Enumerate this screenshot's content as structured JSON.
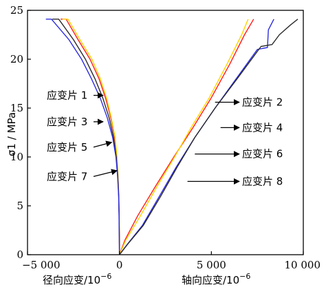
{
  "chart_data": {
    "type": "line",
    "ylabel": "σ1 / MPa",
    "xlabel_left": "径向应变/10",
    "xlabel_left_exp": "−6",
    "xlabel_right": "轴向应变/10",
    "xlabel_right_exp": "−6",
    "xlim": [
      -5000,
      10000
    ],
    "ylim": [
      0,
      25
    ],
    "x_ticks": [
      {
        "value": -5000,
        "label": "−5 000"
      },
      {
        "value": 0,
        "label": "0"
      },
      {
        "value": 5000,
        "label": "5 000"
      },
      {
        "value": 10000,
        "label": "10 000"
      }
    ],
    "y_ticks": [
      {
        "value": 0,
        "label": "0"
      },
      {
        "value": 5,
        "label": "5"
      },
      {
        "value": 10,
        "label": "10"
      },
      {
        "value": 15,
        "label": "15"
      },
      {
        "value": 20,
        "label": "20"
      },
      {
        "value": 25,
        "label": "25"
      }
    ],
    "series": [
      {
        "name": "应变片 1",
        "color": "#ff1a1a",
        "points": [
          [
            0,
            0
          ],
          [
            -5,
            2
          ],
          [
            -15,
            4
          ],
          [
            -35,
            6
          ],
          [
            -80,
            8
          ],
          [
            -140,
            10
          ],
          [
            -260,
            12
          ],
          [
            -470,
            14
          ],
          [
            -750,
            16
          ],
          [
            -1110,
            18
          ],
          [
            -1600,
            20
          ],
          [
            -2250,
            22
          ],
          [
            -2900,
            24.1
          ],
          [
            -3200,
            24.1
          ]
        ]
      },
      {
        "name": "应变片 3",
        "color": "#ffd500",
        "points": [
          [
            0,
            0
          ],
          [
            -5,
            2
          ],
          [
            -15,
            4
          ],
          [
            -35,
            6
          ],
          [
            -75,
            8
          ],
          [
            -130,
            10
          ],
          [
            -240,
            12
          ],
          [
            -440,
            14
          ],
          [
            -700,
            16
          ],
          [
            -1040,
            18
          ],
          [
            -1500,
            20
          ],
          [
            -2150,
            22
          ],
          [
            -2800,
            24.1
          ],
          [
            -3100,
            24.1
          ]
        ]
      },
      {
        "name": "应变片 5",
        "color": "#2a2a2a",
        "points": [
          [
            0,
            0
          ],
          [
            -5,
            2
          ],
          [
            -18,
            4
          ],
          [
            -40,
            6
          ],
          [
            -90,
            8
          ],
          [
            -170,
            10
          ],
          [
            -320,
            12
          ],
          [
            -560,
            14
          ],
          [
            -900,
            16
          ],
          [
            -1330,
            18
          ],
          [
            -1850,
            20
          ],
          [
            -2500,
            22
          ],
          [
            -3300,
            24.1
          ],
          [
            -3650,
            24.1
          ]
        ]
      },
      {
        "name": "应变片 7",
        "color": "#2b2bdf",
        "points": [
          [
            0,
            0
          ],
          [
            -5,
            2
          ],
          [
            -20,
            4
          ],
          [
            -45,
            6
          ],
          [
            -100,
            8
          ],
          [
            -190,
            10
          ],
          [
            -370,
            12
          ],
          [
            -660,
            14
          ],
          [
            -1040,
            16
          ],
          [
            -1520,
            18
          ],
          [
            -2060,
            20
          ],
          [
            -2750,
            22
          ],
          [
            -3700,
            24.1
          ],
          [
            -4000,
            24.1
          ]
        ]
      },
      {
        "name": "应变片 2",
        "color": "#ff1a1a",
        "points": [
          [
            0,
            0
          ],
          [
            300,
            1.5
          ],
          [
            1000,
            4
          ],
          [
            1960,
            7
          ],
          [
            2960,
            10
          ],
          [
            4000,
            13
          ],
          [
            4980,
            16
          ],
          [
            6000,
            19.5
          ],
          [
            6800,
            22.5
          ],
          [
            7300,
            24.1
          ]
        ]
      },
      {
        "name": "应变片 4",
        "color": "#ffd500",
        "points": [
          [
            0,
            0
          ],
          [
            350,
            1.5
          ],
          [
            1150,
            4
          ],
          [
            2050,
            7
          ],
          [
            3000,
            10
          ],
          [
            3900,
            13
          ],
          [
            4870,
            16
          ],
          [
            5850,
            19.5
          ],
          [
            6650,
            22.5
          ],
          [
            7000,
            24.1
          ]
        ]
      },
      {
        "name": "应变片 6",
        "color": "#2b2bdf",
        "points": [
          [
            0,
            0
          ],
          [
            400,
            1
          ],
          [
            1250,
            3
          ],
          [
            2180,
            6
          ],
          [
            3100,
            9
          ],
          [
            4100,
            12
          ],
          [
            5200,
            15
          ],
          [
            6350,
            18
          ],
          [
            7500,
            21
          ],
          [
            8050,
            21.2
          ],
          [
            8100,
            23
          ],
          [
            8400,
            24.1
          ]
        ]
      },
      {
        "name": "应变片 8",
        "color": "#2a2a2a",
        "points": [
          [
            0,
            0
          ],
          [
            500,
            1.2
          ],
          [
            1300,
            3
          ],
          [
            2250,
            6
          ],
          [
            3150,
            9
          ],
          [
            4100,
            12
          ],
          [
            5200,
            15
          ],
          [
            6400,
            18
          ],
          [
            7700,
            21.3
          ],
          [
            8300,
            21.5
          ],
          [
            8700,
            22.5
          ],
          [
            9300,
            23.5
          ],
          [
            9700,
            24.1
          ]
        ]
      }
    ],
    "annotations": [
      {
        "text": "应变片 1",
        "side": "left",
        "label_y": 16.3,
        "arrow_x": -1600,
        "arrow_y": 16.3
      },
      {
        "text": "应变片 3",
        "side": "left",
        "label_y": 13.6,
        "arrow_x": -1000,
        "arrow_y": 13.6
      },
      {
        "text": "应变片 5",
        "side": "left",
        "label_y": 11.0,
        "arrow_x": -420,
        "arrow_y": 11.5
      },
      {
        "text": "应变片 7",
        "side": "left",
        "label_y": 8.0,
        "arrow_x": -130,
        "arrow_y": 8.6
      },
      {
        "text": "应变片 2",
        "side": "right",
        "label_y": 15.6,
        "arrow_x": 5200,
        "arrow_y": 15.6
      },
      {
        "text": "应变片 4",
        "side": "right",
        "label_y": 13.0,
        "arrow_x": 5500,
        "arrow_y": 13.0
      },
      {
        "text": "应变片 6",
        "side": "right",
        "label_y": 10.3,
        "arrow_x": 4100,
        "arrow_y": 10.3
      },
      {
        "text": "应变片 8",
        "side": "right",
        "label_y": 7.5,
        "arrow_x": 3700,
        "arrow_y": 7.5
      }
    ]
  }
}
